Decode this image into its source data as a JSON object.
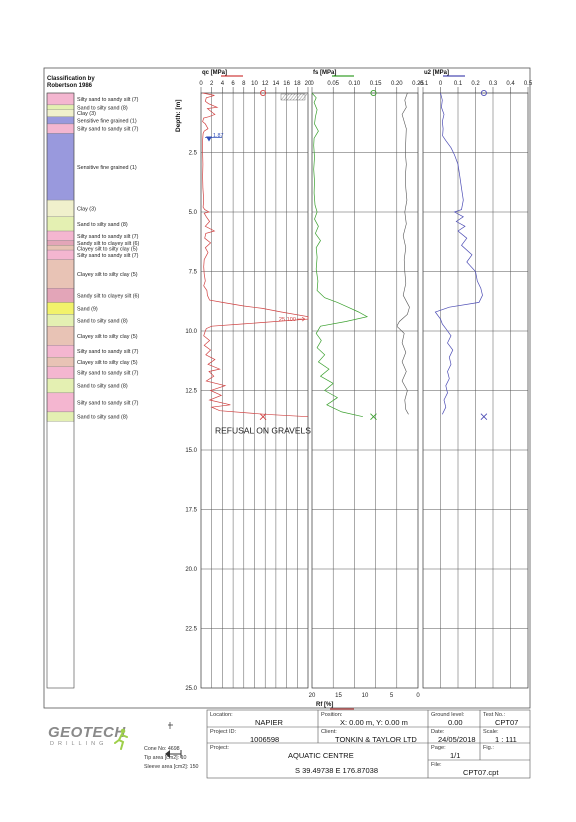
{
  "legend": {
    "title_line1": "Classification by",
    "title_line2": "Robertson 1986",
    "layers": [
      {
        "from": 0.0,
        "to": 0.5,
        "label": "Silty sand to sandy silt (7)",
        "color": "#f4b6d0"
      },
      {
        "from": 0.5,
        "to": 0.7,
        "label": "Sand to silty sand (8)",
        "color": "#e4f0b2"
      },
      {
        "from": 0.7,
        "to": 1.0,
        "label": "Clay (3)",
        "color": "#f0f0cc"
      },
      {
        "from": 1.0,
        "to": 1.3,
        "label": "Sensitive fine grained (1)",
        "color": "#9999dd"
      },
      {
        "from": 1.3,
        "to": 1.7,
        "label": "Silty sand to sandy silt (7)",
        "color": "#f4b6d0"
      },
      {
        "from": 1.7,
        "to": 4.5,
        "label": "Sensitive fine grained (1)",
        "color": "#9999dd"
      },
      {
        "from": 4.5,
        "to": 5.2,
        "label": "Clay (3)",
        "color": "#f0f0cc"
      },
      {
        "from": 5.2,
        "to": 5.8,
        "label": "Sand to silty sand (8)",
        "color": "#e4f0b2"
      },
      {
        "from": 5.8,
        "to": 6.2,
        "label": "Silty sand to sandy silt (7)",
        "color": "#f4b6d0"
      },
      {
        "from": 6.2,
        "to": 6.4,
        "label": "Sandy silt to clayey silt (6)",
        "color": "#e3a5b8"
      },
      {
        "from": 6.4,
        "to": 6.6,
        "label": "Clayey silt to silty clay (5)",
        "color": "#e8c3b5"
      },
      {
        "from": 6.6,
        "to": 7.0,
        "label": "Silty sand to sandy silt (7)",
        "color": "#f4b6d0"
      },
      {
        "from": 7.0,
        "to": 8.2,
        "label": "Clayey silt to silty clay (5)",
        "color": "#e8c3b5"
      },
      {
        "from": 8.2,
        "to": 8.8,
        "label": "Sandy silt to clayey silt (6)",
        "color": "#e3a5b8"
      },
      {
        "from": 8.8,
        "to": 9.3,
        "label": "Sand (9)",
        "color": "#f2f26a"
      },
      {
        "from": 9.3,
        "to": 9.8,
        "label": "Sand to silty sand (8)",
        "color": "#e4f0b2"
      },
      {
        "from": 9.8,
        "to": 10.6,
        "label": "Clayey silt to silty clay (5)",
        "color": "#e8c3b5"
      },
      {
        "from": 10.6,
        "to": 11.1,
        "label": "Silty sand to sandy silt (7)",
        "color": "#f4b6d0"
      },
      {
        "from": 11.1,
        "to": 11.5,
        "label": "Clayey silt to silty clay (5)",
        "color": "#e8c3b5"
      },
      {
        "from": 11.5,
        "to": 12.0,
        "label": "Silty sand to sandy silt (7)",
        "color": "#f4b6d0"
      },
      {
        "from": 12.0,
        "to": 12.6,
        "label": "Sand to silty sand (8)",
        "color": "#e4f0b2"
      },
      {
        "from": 12.6,
        "to": 13.4,
        "label": "Silty sand to sandy silt (7)",
        "color": "#f4b6d0"
      },
      {
        "from": 13.4,
        "to": 13.8,
        "label": "Sand to silty sand (8)",
        "color": "#e4f0b2"
      }
    ]
  },
  "chart_data": {
    "type": "line",
    "y_axis": {
      "label": "Depth: [m]",
      "range": [
        0,
        25
      ],
      "ticks": [
        2.5,
        5.0,
        7.5,
        10.0,
        12.5,
        15.0,
        17.5,
        20.0,
        22.5,
        25.0
      ]
    },
    "water_level": {
      "depth": 1.87,
      "label": "1.87"
    },
    "refusal_depth": 13.6,
    "annotation": "REFUSAL ON GRAVELS",
    "tracks": [
      {
        "label": "qc [MPa]",
        "color": "#d14141",
        "range": [
          0,
          20
        ],
        "ticks": [
          "0",
          "2",
          "4",
          "6",
          "8",
          "10",
          "12",
          "14",
          "16",
          "18",
          "20"
        ],
        "max_marker": {
          "depth": 9.5,
          "label": "25.100",
          "value": 25.1
        },
        "series": [
          [
            0,
            0.3
          ],
          [
            0.1,
            2.5
          ],
          [
            0.2,
            1.0
          ],
          [
            0.35,
            0.8
          ],
          [
            0.45,
            1.4
          ],
          [
            0.6,
            3.0
          ],
          [
            0.65,
            1.2
          ],
          [
            0.8,
            2.0
          ],
          [
            0.9,
            2.6
          ],
          [
            1.0,
            1.4
          ],
          [
            1.05,
            0.5
          ],
          [
            1.2,
            0.3
          ],
          [
            1.3,
            0.8
          ],
          [
            1.5,
            1.3
          ],
          [
            1.6,
            0.6
          ],
          [
            1.7,
            0.4
          ],
          [
            2.0,
            0.3
          ],
          [
            2.5,
            0.3
          ],
          [
            3.0,
            0.35
          ],
          [
            3.5,
            0.3
          ],
          [
            4.0,
            0.35
          ],
          [
            4.5,
            0.5
          ],
          [
            4.8,
            0.4
          ],
          [
            4.9,
            0.7
          ],
          [
            5.0,
            1.5
          ],
          [
            5.05,
            0.6
          ],
          [
            5.2,
            1.0
          ],
          [
            5.4,
            1.6
          ],
          [
            5.6,
            0.8
          ],
          [
            5.8,
            2.5
          ],
          [
            5.9,
            0.9
          ],
          [
            6.1,
            0.7
          ],
          [
            6.3,
            1.8
          ],
          [
            6.5,
            0.8
          ],
          [
            6.7,
            1.3
          ],
          [
            7.0,
            0.6
          ],
          [
            7.3,
            0.5
          ],
          [
            7.6,
            0.6
          ],
          [
            7.9,
            0.8
          ],
          [
            8.1,
            0.5
          ],
          [
            8.3,
            1.1
          ],
          [
            8.5,
            1.2
          ],
          [
            8.7,
            1.6
          ],
          [
            8.8,
            4.0
          ],
          [
            8.95,
            8.0
          ],
          [
            9.05,
            11.5
          ],
          [
            9.2,
            15.0
          ],
          [
            9.4,
            20.0
          ],
          [
            9.5,
            20.0
          ],
          [
            9.7,
            8.0
          ],
          [
            9.8,
            2.0
          ],
          [
            9.9,
            1.0
          ],
          [
            10.0,
            0.8
          ],
          [
            10.2,
            0.5
          ],
          [
            10.4,
            1.6
          ],
          [
            10.6,
            0.6
          ],
          [
            10.8,
            1.8
          ],
          [
            11.0,
            0.9
          ],
          [
            11.2,
            2.6
          ],
          [
            11.4,
            1.3
          ],
          [
            11.6,
            3.5
          ],
          [
            11.7,
            1.5
          ],
          [
            11.9,
            2.4
          ],
          [
            12.1,
            1.0
          ],
          [
            12.3,
            4.5
          ],
          [
            12.5,
            1.8
          ],
          [
            12.7,
            3.8
          ],
          [
            12.9,
            1.6
          ],
          [
            13.1,
            5.5
          ],
          [
            13.2,
            2.0
          ],
          [
            13.35,
            3.5
          ],
          [
            13.5,
            12.0
          ],
          [
            13.6,
            20.0
          ]
        ]
      },
      {
        "label": "fs [MPa]",
        "color": "#3aa02e",
        "range": [
          0,
          0.25
        ],
        "ticks": [
          "0",
          "0.05",
          "0.10",
          "0.15",
          "0.20",
          "0.25"
        ],
        "series": [
          [
            0,
            0.0
          ],
          [
            0.2,
            0.01
          ],
          [
            0.4,
            0.005
          ],
          [
            0.7,
            0.012
          ],
          [
            1.0,
            0.008
          ],
          [
            1.3,
            0.006
          ],
          [
            1.6,
            0.015
          ],
          [
            1.9,
            0.005
          ],
          [
            2.2,
            0.004
          ],
          [
            2.7,
            0.006
          ],
          [
            3.2,
            0.004
          ],
          [
            3.7,
            0.006
          ],
          [
            4.2,
            0.005
          ],
          [
            4.7,
            0.007
          ],
          [
            5.0,
            0.012
          ],
          [
            5.3,
            0.006
          ],
          [
            5.6,
            0.015
          ],
          [
            5.9,
            0.008
          ],
          [
            6.2,
            0.02
          ],
          [
            6.5,
            0.01
          ],
          [
            6.9,
            0.012
          ],
          [
            7.4,
            0.01
          ],
          [
            7.9,
            0.014
          ],
          [
            8.3,
            0.012
          ],
          [
            8.6,
            0.03
          ],
          [
            8.8,
            0.06
          ],
          [
            9.0,
            0.085
          ],
          [
            9.2,
            0.11
          ],
          [
            9.4,
            0.13
          ],
          [
            9.6,
            0.08
          ],
          [
            9.8,
            0.02
          ],
          [
            10.1,
            0.01
          ],
          [
            10.4,
            0.022
          ],
          [
            10.7,
            0.012
          ],
          [
            11.0,
            0.03
          ],
          [
            11.3,
            0.015
          ],
          [
            11.6,
            0.04
          ],
          [
            11.9,
            0.02
          ],
          [
            12.2,
            0.05
          ],
          [
            12.5,
            0.03
          ],
          [
            12.8,
            0.06
          ],
          [
            13.1,
            0.035
          ],
          [
            13.4,
            0.07
          ],
          [
            13.6,
            0.12
          ]
        ],
        "series2": {
          "label": "Rf [%]",
          "color": "#555555",
          "range": [
            20,
            0
          ],
          "ticks": [
            "20",
            "15",
            "10",
            "5",
            "0"
          ],
          "series": [
            [
              0,
              2.0
            ],
            [
              0.3,
              2.5
            ],
            [
              0.6,
              2.2
            ],
            [
              0.9,
              3.0
            ],
            [
              1.2,
              2.6
            ],
            [
              1.5,
              2.2
            ],
            [
              2.0,
              2.3
            ],
            [
              2.5,
              2.4
            ],
            [
              3.0,
              2.2
            ],
            [
              3.5,
              2.4
            ],
            [
              4.0,
              2.3
            ],
            [
              4.5,
              2.1
            ],
            [
              5.0,
              2.5
            ],
            [
              5.5,
              2.2
            ],
            [
              6.0,
              2.8
            ],
            [
              6.5,
              2.3
            ],
            [
              7.0,
              2.6
            ],
            [
              7.5,
              2.5
            ],
            [
              8.0,
              2.3
            ],
            [
              8.5,
              2.8
            ],
            [
              9.0,
              1.6
            ],
            [
              9.3,
              2.0
            ],
            [
              9.6,
              3.5
            ],
            [
              9.8,
              4.0
            ],
            [
              10.1,
              2.6
            ],
            [
              10.5,
              3.0
            ],
            [
              10.9,
              2.3
            ],
            [
              11.3,
              3.0
            ],
            [
              11.7,
              2.2
            ],
            [
              12.1,
              3.0
            ],
            [
              12.5,
              2.0
            ],
            [
              12.9,
              2.5
            ],
            [
              13.3,
              2.3
            ],
            [
              13.5,
              1.8
            ]
          ]
        }
      },
      {
        "label": "u2 [MPa]",
        "color": "#4d4db5",
        "range": [
          -0.1,
          0.5
        ],
        "ticks": [
          "-0.1",
          "0",
          "0.1",
          "0.2",
          "0.3",
          "0.4",
          "0.5"
        ],
        "series": [
          [
            0,
            0.0
          ],
          [
            0.3,
            0.01
          ],
          [
            0.6,
            0.005
          ],
          [
            0.9,
            0.02
          ],
          [
            1.2,
            0.01
          ],
          [
            1.5,
            0.015
          ],
          [
            1.8,
            0.012
          ],
          [
            2.0,
            0.03
          ],
          [
            2.3,
            0.06
          ],
          [
            2.6,
            0.08
          ],
          [
            3.0,
            0.1
          ],
          [
            3.5,
            0.11
          ],
          [
            4.0,
            0.12
          ],
          [
            4.5,
            0.13
          ],
          [
            4.9,
            0.12
          ],
          [
            5.0,
            0.08
          ],
          [
            5.2,
            0.13
          ],
          [
            5.4,
            0.09
          ],
          [
            5.6,
            0.14
          ],
          [
            5.8,
            0.1
          ],
          [
            6.1,
            0.15
          ],
          [
            6.4,
            0.12
          ],
          [
            6.8,
            0.18
          ],
          [
            7.1,
            0.15
          ],
          [
            7.5,
            0.2
          ],
          [
            7.9,
            0.21
          ],
          [
            8.2,
            0.23
          ],
          [
            8.5,
            0.24
          ],
          [
            8.8,
            0.22
          ],
          [
            9.0,
            0.05
          ],
          [
            9.2,
            -0.03
          ],
          [
            9.5,
            0.0
          ],
          [
            9.7,
            0.01
          ],
          [
            9.9,
            0.03
          ],
          [
            10.2,
            0.06
          ],
          [
            10.5,
            0.04
          ],
          [
            10.8,
            0.07
          ],
          [
            11.1,
            0.05
          ],
          [
            11.4,
            0.06
          ],
          [
            11.7,
            0.04
          ],
          [
            12.0,
            0.05
          ],
          [
            12.3,
            0.03
          ],
          [
            12.6,
            0.04
          ],
          [
            12.9,
            0.02
          ],
          [
            13.2,
            0.03
          ],
          [
            13.5,
            0.01
          ]
        ]
      }
    ]
  },
  "info": {
    "location_label": "Location:",
    "location": "NAPIER",
    "position_label": "Position:",
    "position": "X: 0.00 m, Y: 0.00 m",
    "ground_label": "Ground level:",
    "ground": "0.00",
    "testno_label": "Test No.:",
    "testno": "CPT07",
    "projectid_label": "Project ID:",
    "projectid": "1006598",
    "client_label": "Client:",
    "client": "TONKIN & TAYLOR LTD",
    "date_label": "Date:",
    "date": "24/05/2018",
    "scale_label": "Scale:",
    "scale": "1 : 111",
    "project_label": "Project:",
    "project": "AQUATIC CENTRE",
    "coords": "S 39.49738 E 176.87038",
    "page_label": "Page:",
    "page": "1/1",
    "fig_label": "Fig.:",
    "file_label": "File:",
    "file": "CPT07.cpt",
    "cone_no": "Cone No: 4698",
    "tip_area": "Tip area [cm2]: 10",
    "sleeve_area": "Sleeve area [cm2]: 150",
    "logo_main": "GEOTECH",
    "logo_sub": "DRILLING"
  }
}
